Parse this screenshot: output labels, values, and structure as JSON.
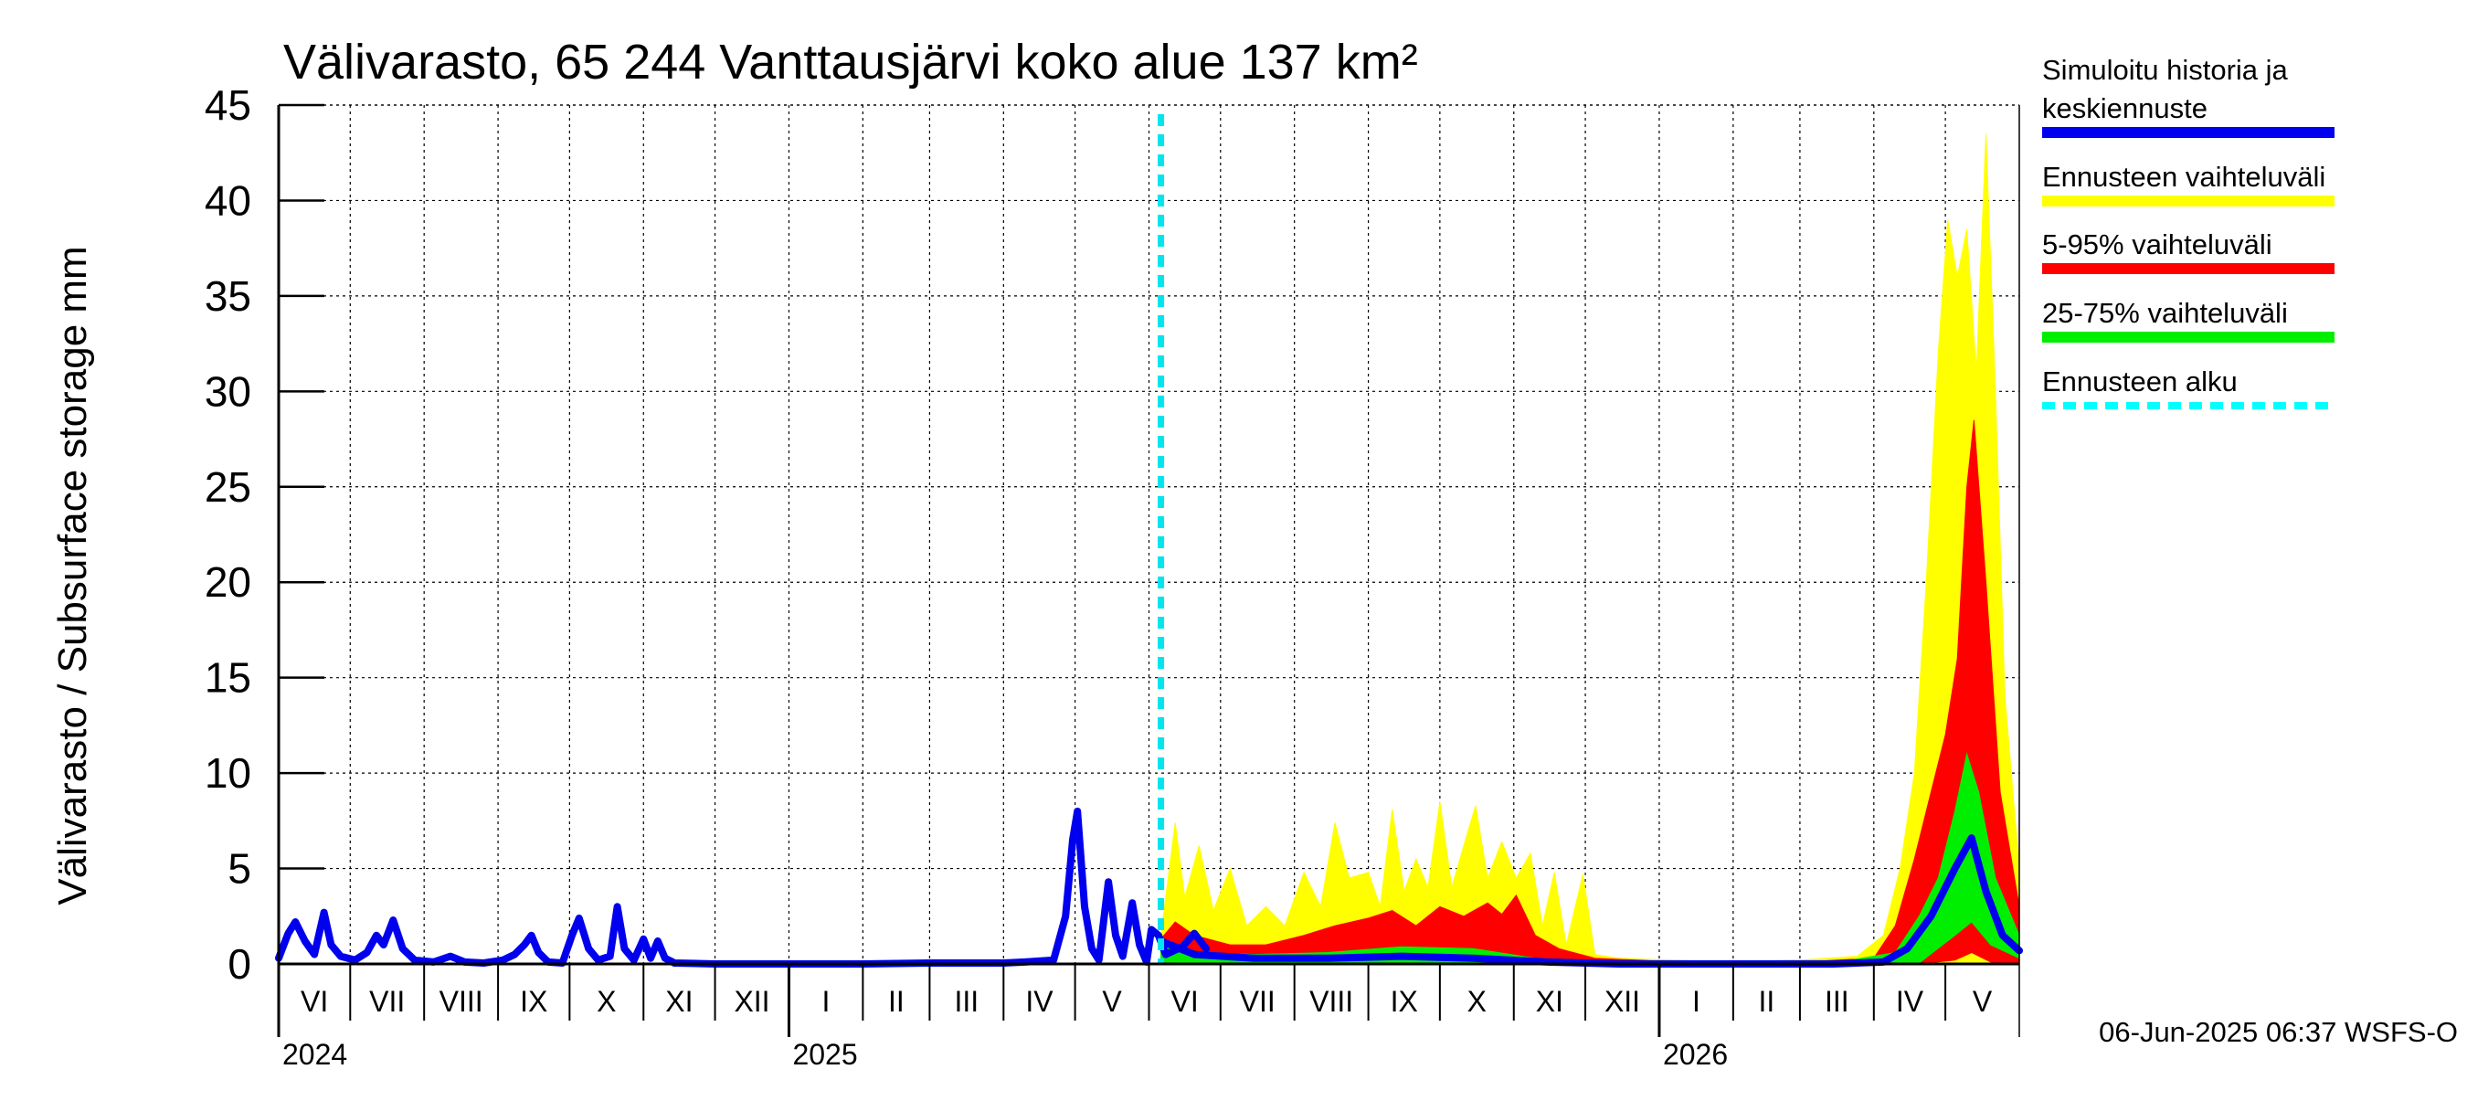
{
  "chart_data": {
    "type": "area",
    "title": "Välivarasto, 65 244 Vanttausjärvi koko alue 137 km²",
    "ylabel": "Välivarasto / Subsurface storage  mm",
    "ylim": [
      0,
      45
    ],
    "yticks": [
      "0",
      "5",
      "10",
      "15",
      "20",
      "25",
      "30",
      "35",
      "40",
      "45"
    ],
    "x_range": [
      "2024-06-01",
      "2026-06-01"
    ],
    "months": [
      {
        "label": "VI",
        "start": "2024-06-01"
      },
      {
        "label": "VII",
        "start": "2024-07-01"
      },
      {
        "label": "VIII",
        "start": "2024-08-01"
      },
      {
        "label": "IX",
        "start": "2024-09-01"
      },
      {
        "label": "X",
        "start": "2024-10-01"
      },
      {
        "label": "XI",
        "start": "2024-11-01"
      },
      {
        "label": "XII",
        "start": "2024-12-01"
      },
      {
        "label": "I",
        "start": "2025-01-01"
      },
      {
        "label": "II",
        "start": "2025-02-01"
      },
      {
        "label": "III",
        "start": "2025-03-01"
      },
      {
        "label": "IV",
        "start": "2025-04-01"
      },
      {
        "label": "V",
        "start": "2025-05-01"
      },
      {
        "label": "VI",
        "start": "2025-06-01"
      },
      {
        "label": "VII",
        "start": "2025-07-01"
      },
      {
        "label": "VIII",
        "start": "2025-08-01"
      },
      {
        "label": "IX",
        "start": "2025-09-01"
      },
      {
        "label": "X",
        "start": "2025-10-01"
      },
      {
        "label": "XI",
        "start": "2025-11-01"
      },
      {
        "label": "XII",
        "start": "2025-12-01"
      },
      {
        "label": "I",
        "start": "2026-01-01"
      },
      {
        "label": "II",
        "start": "2026-02-01"
      },
      {
        "label": "III",
        "start": "2026-03-01"
      },
      {
        "label": "IV",
        "start": "2026-04-01"
      },
      {
        "label": "V",
        "start": "2026-05-01"
      }
    ],
    "years": [
      {
        "label": "2024",
        "date": "2024-06-01"
      },
      {
        "label": "2025",
        "date": "2025-01-01"
      },
      {
        "label": "2026",
        "date": "2026-01-01"
      }
    ],
    "forecast_start": "2025-06-06",
    "grid": true,
    "legend_position": "right",
    "legend": [
      {
        "label_lines": [
          "Simuloitu historia ja",
          "keskiennuste"
        ],
        "color": "#0000ee",
        "style": "solid"
      },
      {
        "label_lines": [
          "Ennusteen vaihteluväli"
        ],
        "color": "#ffff00",
        "style": "solid"
      },
      {
        "label_lines": [
          "5-95% vaihteluväli"
        ],
        "color": "#ff0000",
        "style": "solid"
      },
      {
        "label_lines": [
          "25-75% vaihteluväli"
        ],
        "color": "#00ee00",
        "style": "solid"
      },
      {
        "label_lines": [
          "Ennusteen alku"
        ],
        "color": "#00ffff",
        "style": "dashed"
      }
    ],
    "series": [
      {
        "name": "Simuloitu historia ja keskiennuste",
        "color": "#0000ee",
        "points": [
          [
            "2024-06-01",
            0.3
          ],
          [
            "2024-06-05",
            1.6
          ],
          [
            "2024-06-08",
            2.2
          ],
          [
            "2024-06-12",
            1.2
          ],
          [
            "2024-06-16",
            0.5
          ],
          [
            "2024-06-20",
            2.7
          ],
          [
            "2024-06-23",
            1.0
          ],
          [
            "2024-06-27",
            0.4
          ],
          [
            "2024-07-03",
            0.2
          ],
          [
            "2024-07-08",
            0.6
          ],
          [
            "2024-07-12",
            1.5
          ],
          [
            "2024-07-15",
            1.0
          ],
          [
            "2024-07-19",
            2.3
          ],
          [
            "2024-07-23",
            0.8
          ],
          [
            "2024-07-28",
            0.2
          ],
          [
            "2024-08-05",
            0.1
          ],
          [
            "2024-08-12",
            0.4
          ],
          [
            "2024-08-18",
            0.1
          ],
          [
            "2024-08-26",
            0.05
          ],
          [
            "2024-09-03",
            0.2
          ],
          [
            "2024-09-08",
            0.5
          ],
          [
            "2024-09-12",
            1.0
          ],
          [
            "2024-09-15",
            1.5
          ],
          [
            "2024-09-18",
            0.6
          ],
          [
            "2024-09-22",
            0.1
          ],
          [
            "2024-09-28",
            0.05
          ],
          [
            "2024-10-02",
            1.5
          ],
          [
            "2024-10-05",
            2.4
          ],
          [
            "2024-10-09",
            0.8
          ],
          [
            "2024-10-13",
            0.2
          ],
          [
            "2024-10-18",
            0.4
          ],
          [
            "2024-10-21",
            3.0
          ],
          [
            "2024-10-24",
            0.8
          ],
          [
            "2024-10-28",
            0.2
          ],
          [
            "2024-11-01",
            1.3
          ],
          [
            "2024-11-04",
            0.3
          ],
          [
            "2024-11-07",
            1.2
          ],
          [
            "2024-11-10",
            0.3
          ],
          [
            "2024-11-14",
            0.05
          ],
          [
            "2024-12-01",
            0.0
          ],
          [
            "2025-01-01",
            0.0
          ],
          [
            "2025-02-01",
            0.0
          ],
          [
            "2025-03-01",
            0.05
          ],
          [
            "2025-04-01",
            0.05
          ],
          [
            "2025-04-10",
            0.1
          ],
          [
            "2025-04-22",
            0.2
          ],
          [
            "2025-04-27",
            2.5
          ],
          [
            "2025-04-30",
            6.5
          ],
          [
            "2025-05-02",
            8.0
          ],
          [
            "2025-05-05",
            3.0
          ],
          [
            "2025-05-08",
            0.8
          ],
          [
            "2025-05-11",
            0.2
          ],
          [
            "2025-05-15",
            4.3
          ],
          [
            "2025-05-18",
            1.5
          ],
          [
            "2025-05-21",
            0.4
          ],
          [
            "2025-05-25",
            3.2
          ],
          [
            "2025-05-28",
            1.0
          ],
          [
            "2025-05-31",
            0.1
          ],
          [
            "2025-06-02",
            1.8
          ],
          [
            "2025-06-05",
            1.5
          ],
          [
            "2025-06-08",
            0.5
          ],
          [
            "2025-06-15",
            0.9
          ],
          [
            "2025-06-20",
            1.6
          ],
          [
            "2025-06-25",
            0.8
          ]
        ]
      },
      {
        "name": "Keskiennuste",
        "color": "#0000ee",
        "points": [
          [
            "2025-06-06",
            1.2
          ],
          [
            "2025-06-20",
            0.5
          ],
          [
            "2025-07-15",
            0.3
          ],
          [
            "2025-08-15",
            0.3
          ],
          [
            "2025-09-15",
            0.4
          ],
          [
            "2025-10-15",
            0.3
          ],
          [
            "2025-11-15",
            0.1
          ],
          [
            "2025-12-15",
            0.0
          ],
          [
            "2026-01-15",
            0.0
          ],
          [
            "2026-02-15",
            0.0
          ],
          [
            "2026-03-15",
            0.0
          ],
          [
            "2026-04-05",
            0.1
          ],
          [
            "2026-04-15",
            0.8
          ],
          [
            "2026-04-25",
            2.5
          ],
          [
            "2026-05-05",
            5.0
          ],
          [
            "2026-05-12",
            6.6
          ],
          [
            "2026-05-18",
            3.8
          ],
          [
            "2026-05-25",
            1.5
          ],
          [
            "2026-06-01",
            0.7
          ]
        ]
      }
    ],
    "bands": [
      {
        "name": "Ennusteen vaihteluväli",
        "color": "#ffff00",
        "lower": [
          [
            "2025-06-06",
            0
          ],
          [
            "2026-06-01",
            0
          ]
        ],
        "upper": [
          [
            "2025-06-06",
            1.5
          ],
          [
            "2025-06-12",
            7.4
          ],
          [
            "2025-06-16",
            3.5
          ],
          [
            "2025-06-22",
            6.2
          ],
          [
            "2025-06-28",
            2.8
          ],
          [
            "2025-07-05",
            5.0
          ],
          [
            "2025-07-12",
            2.0
          ],
          [
            "2025-07-20",
            3.0
          ],
          [
            "2025-07-28",
            2.0
          ],
          [
            "2025-08-05",
            4.8
          ],
          [
            "2025-08-12",
            3.0
          ],
          [
            "2025-08-18",
            7.4
          ],
          [
            "2025-08-24",
            4.5
          ],
          [
            "2025-09-01",
            4.8
          ],
          [
            "2025-09-06",
            3.0
          ],
          [
            "2025-09-11",
            8.1
          ],
          [
            "2025-09-16",
            3.8
          ],
          [
            "2025-09-21",
            5.5
          ],
          [
            "2025-09-26",
            4.0
          ],
          [
            "2025-10-01",
            8.5
          ],
          [
            "2025-10-06",
            4.0
          ],
          [
            "2025-10-11",
            6.2
          ],
          [
            "2025-10-16",
            8.3
          ],
          [
            "2025-10-21",
            4.5
          ],
          [
            "2025-10-27",
            6.4
          ],
          [
            "2025-11-02",
            4.5
          ],
          [
            "2025-11-08",
            5.8
          ],
          [
            "2025-11-13",
            2.0
          ],
          [
            "2025-11-18",
            4.8
          ],
          [
            "2025-11-23",
            1.0
          ],
          [
            "2025-11-30",
            4.7
          ],
          [
            "2025-12-05",
            0.5
          ],
          [
            "2025-12-15",
            0.3
          ],
          [
            "2026-01-05",
            0.2
          ],
          [
            "2026-02-01",
            0.1
          ],
          [
            "2026-03-01",
            0.2
          ],
          [
            "2026-03-25",
            0.4
          ],
          [
            "2026-04-05",
            1.5
          ],
          [
            "2026-04-12",
            5.0
          ],
          [
            "2026-04-18",
            10.0
          ],
          [
            "2026-04-23",
            20.0
          ],
          [
            "2026-04-28",
            32.0
          ],
          [
            "2026-05-02",
            39.0
          ],
          [
            "2026-05-06",
            36.0
          ],
          [
            "2026-05-10",
            38.5
          ],
          [
            "2026-05-14",
            31.0
          ],
          [
            "2026-05-18",
            43.5
          ],
          [
            "2026-05-22",
            30.0
          ],
          [
            "2026-05-26",
            14.0
          ],
          [
            "2026-06-01",
            5.0
          ]
        ]
      },
      {
        "name": "5-95% vaihteluväli",
        "color": "#ff0000",
        "lower": [
          [
            "2025-06-06",
            0
          ],
          [
            "2026-04-20",
            0
          ],
          [
            "2026-05-05",
            0.2
          ],
          [
            "2026-05-12",
            0.6
          ],
          [
            "2026-05-20",
            0.1
          ],
          [
            "2026-06-01",
            0
          ]
        ],
        "upper": [
          [
            "2025-06-06",
            1.3
          ],
          [
            "2025-06-12",
            2.2
          ],
          [
            "2025-06-20",
            1.5
          ],
          [
            "2025-07-05",
            1.0
          ],
          [
            "2025-07-20",
            1.0
          ],
          [
            "2025-08-05",
            1.5
          ],
          [
            "2025-08-18",
            2.0
          ],
          [
            "2025-09-01",
            2.4
          ],
          [
            "2025-09-11",
            2.8
          ],
          [
            "2025-09-21",
            2.0
          ],
          [
            "2025-10-01",
            3.0
          ],
          [
            "2025-10-11",
            2.5
          ],
          [
            "2025-10-21",
            3.2
          ],
          [
            "2025-10-27",
            2.6
          ],
          [
            "2025-11-02",
            3.6
          ],
          [
            "2025-11-10",
            1.5
          ],
          [
            "2025-11-20",
            0.8
          ],
          [
            "2025-12-05",
            0.3
          ],
          [
            "2026-01-10",
            0.1
          ],
          [
            "2026-03-01",
            0.1
          ],
          [
            "2026-04-01",
            0.3
          ],
          [
            "2026-04-10",
            2.0
          ],
          [
            "2026-04-18",
            5.5
          ],
          [
            "2026-04-25",
            9.0
          ],
          [
            "2026-05-01",
            12.0
          ],
          [
            "2026-05-06",
            16.0
          ],
          [
            "2026-05-10",
            25.0
          ],
          [
            "2026-05-13",
            28.5
          ],
          [
            "2026-05-18",
            20.0
          ],
          [
            "2026-05-24",
            9.0
          ],
          [
            "2026-06-01",
            3.0
          ]
        ]
      },
      {
        "name": "25-75% vaihteluväli",
        "color": "#00ee00",
        "lower": [
          [
            "2025-06-06",
            0.1
          ],
          [
            "2025-08-01",
            0.05
          ],
          [
            "2026-04-20",
            0.05
          ],
          [
            "2026-05-05",
            1.5
          ],
          [
            "2026-05-12",
            2.2
          ],
          [
            "2026-05-20",
            1.0
          ],
          [
            "2026-06-01",
            0.3
          ]
        ],
        "upper": [
          [
            "2025-06-06",
            1.0
          ],
          [
            "2025-06-20",
            0.6
          ],
          [
            "2025-07-15",
            0.5
          ],
          [
            "2025-08-15",
            0.6
          ],
          [
            "2025-09-15",
            0.9
          ],
          [
            "2025-10-15",
            0.8
          ],
          [
            "2025-11-10",
            0.3
          ],
          [
            "2025-12-10",
            0.1
          ],
          [
            "2026-03-15",
            0.05
          ],
          [
            "2026-04-10",
            0.6
          ],
          [
            "2026-04-20",
            2.5
          ],
          [
            "2026-04-28",
            4.5
          ],
          [
            "2026-05-05",
            8.0
          ],
          [
            "2026-05-10",
            11.0
          ],
          [
            "2026-05-15",
            9.0
          ],
          [
            "2026-05-22",
            4.5
          ],
          [
            "2026-06-01",
            1.5
          ]
        ]
      }
    ]
  },
  "timestamp": "06-Jun-2025 06:37 WSFS-O"
}
